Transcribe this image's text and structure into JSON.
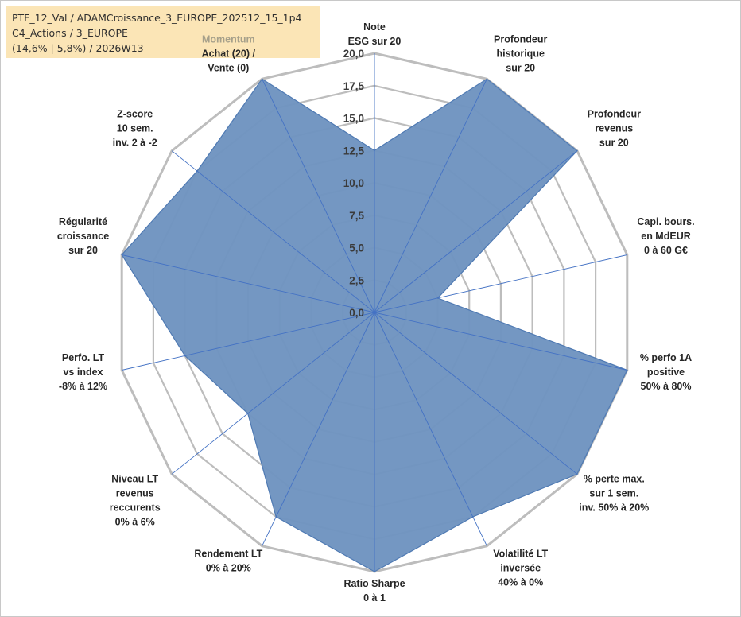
{
  "info_box": {
    "line1": "PTF_12_Val / ADAMCroissance_3_EUROPE_202512_15_1p4",
    "line2": "C4_Actions / 3_EUROPE",
    "line3": "(14,6% | 5,8%) / 2026W13"
  },
  "chart_data": {
    "type": "radar",
    "title": "",
    "rmin": 0,
    "rmax": 20,
    "ticks": [
      0,
      2.5,
      5,
      7.5,
      10,
      12.5,
      15,
      17.5,
      20
    ],
    "tick_labels": [
      "0,0",
      "2,5",
      "5,0",
      "7,5",
      "10,0",
      "12,5",
      "15,0",
      "17,5",
      "20,0"
    ],
    "axes": [
      {
        "label_lines": [
          "Note",
          "ESG sur 20"
        ]
      },
      {
        "label_lines": [
          "Profondeur",
          "historique",
          "sur 20"
        ]
      },
      {
        "label_lines": [
          "Profondeur",
          "revenus",
          "sur 20"
        ]
      },
      {
        "label_lines": [
          "Capi. bours.",
          "en MdEUR",
          "0 à 60 G€"
        ]
      },
      {
        "label_lines": [
          "% perfo 1A",
          "positive",
          "50% à 80%"
        ]
      },
      {
        "label_lines": [
          "% perte max.",
          "sur 1 sem.",
          "inv. 50% à 20%"
        ]
      },
      {
        "label_lines": [
          "Volatilité LT",
          "inversée",
          "40% à 0%"
        ]
      },
      {
        "label_lines": [
          "Ratio Sharpe",
          "0 à 1"
        ]
      },
      {
        "label_lines": [
          "Rendement LT",
          "0% à 20%"
        ]
      },
      {
        "label_lines": [
          "Niveau LT",
          "revenus",
          "reccurents",
          "0% à 6%"
        ]
      },
      {
        "label_lines": [
          "Perfo. LT",
          "vs index",
          "-8% à 12%"
        ]
      },
      {
        "label_lines": [
          "Régularité",
          "croissance",
          "sur 20"
        ]
      },
      {
        "label_lines": [
          "Z-score",
          "10 sem.",
          "inv. 2 à -2"
        ]
      },
      {
        "label_lines": [
          "Momentum",
          "Achat (20) /",
          "Vente (0)"
        ],
        "first_line_highlight": true
      }
    ],
    "series": [
      {
        "values": [
          12.5,
          20,
          20,
          5,
          20,
          20,
          17.5,
          20,
          17.5,
          12.5,
          15,
          20,
          17.5,
          20
        ],
        "color": "#6f94c0",
        "edge_color": "#4f7ab3"
      }
    ],
    "grid_color": "#bdbdbd",
    "outer_ring_color": "#bdbdbd",
    "spoke_color": "#4472c4"
  }
}
